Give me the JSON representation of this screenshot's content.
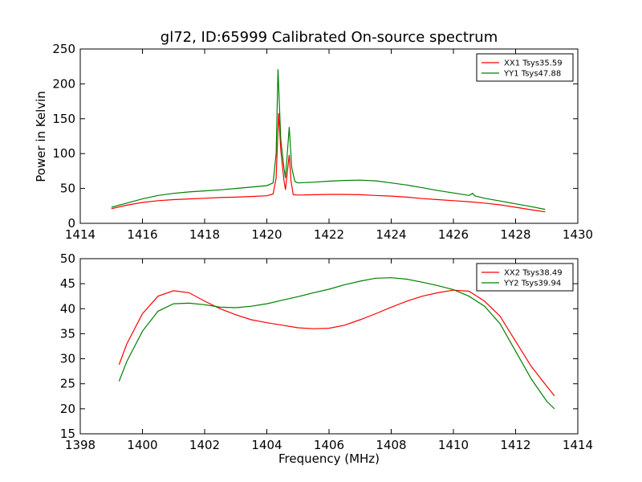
{
  "chart_data": [
    {
      "type": "line",
      "title": "gl72, ID:65999 Calibrated On-source spectrum",
      "ylabel": "Power in Kelvin",
      "xlabel": "",
      "xlim": [
        1414,
        1430
      ],
      "ylim": [
        0,
        250
      ],
      "xticks": [
        "1414",
        "1416",
        "1418",
        "1420",
        "1422",
        "1424",
        "1426",
        "1428",
        "1430"
      ],
      "yticks": [
        "0",
        "50",
        "100",
        "150",
        "200",
        "250"
      ],
      "legend_position": "top-right",
      "grid": false,
      "series": [
        {
          "name": "XX1 Tsys35.59",
          "color": "#ff0000",
          "x": [
            1415.0,
            1415.5,
            1416.0,
            1416.5,
            1417.0,
            1417.5,
            1418.0,
            1418.5,
            1419.0,
            1419.5,
            1420.0,
            1420.2,
            1420.3,
            1420.38,
            1420.45,
            1420.55,
            1420.6,
            1420.65,
            1420.72,
            1420.78,
            1420.85,
            1421.0,
            1421.5,
            1422.0,
            1422.5,
            1423.0,
            1423.5,
            1424.0,
            1424.5,
            1425.0,
            1425.5,
            1426.0,
            1426.5,
            1427.0,
            1427.5,
            1428.0,
            1428.5,
            1428.95
          ],
          "values": [
            21,
            26,
            30,
            32.5,
            34,
            35,
            36,
            37,
            37.5,
            38.5,
            39.5,
            42,
            65,
            158,
            105,
            62,
            48,
            70,
            98,
            60,
            41,
            40.5,
            41,
            41.5,
            41.5,
            41,
            40,
            39,
            37.5,
            35.5,
            34,
            32.5,
            31,
            29,
            26.5,
            23,
            19.5,
            16.5
          ]
        },
        {
          "name": "YY1 Tsys47.88",
          "color": "#008000",
          "x": [
            1415.0,
            1415.5,
            1416.0,
            1416.5,
            1417.0,
            1417.5,
            1418.0,
            1418.5,
            1419.0,
            1419.5,
            1420.0,
            1420.2,
            1420.3,
            1420.36,
            1420.45,
            1420.55,
            1420.6,
            1420.65,
            1420.72,
            1420.8,
            1420.9,
            1421.0,
            1421.5,
            1422.0,
            1422.5,
            1423.0,
            1423.5,
            1424.0,
            1424.5,
            1425.0,
            1425.5,
            1426.0,
            1426.5,
            1426.62,
            1426.68,
            1427.0,
            1427.5,
            1428.0,
            1428.5,
            1428.95
          ],
          "values": [
            23,
            29,
            35,
            40,
            43,
            45,
            46.5,
            48,
            50,
            52,
            54,
            58,
            100,
            221,
            120,
            80,
            65,
            95,
            138,
            80,
            60,
            58,
            59,
            60.5,
            61.5,
            62,
            61,
            58,
            55,
            51,
            47,
            43.5,
            40,
            43,
            39.5,
            36,
            32,
            28,
            24,
            20
          ]
        }
      ]
    },
    {
      "type": "line",
      "title": "",
      "xlabel": "Frequency (MHz)",
      "ylabel": "",
      "xlim": [
        1398,
        1414
      ],
      "ylim": [
        15,
        50
      ],
      "xticks": [
        "1398",
        "1400",
        "1402",
        "1404",
        "1406",
        "1408",
        "1410",
        "1412",
        "1414"
      ],
      "yticks": [
        "15",
        "20",
        "25",
        "30",
        "35",
        "40",
        "45",
        "50"
      ],
      "legend_position": "top-right",
      "grid": false,
      "series": [
        {
          "name": "XX2 Tsys38.49",
          "color": "#ff0000",
          "x": [
            1399.25,
            1399.5,
            1400.0,
            1400.5,
            1401.0,
            1401.5,
            1402.0,
            1402.5,
            1403.0,
            1403.5,
            1404.0,
            1404.5,
            1405.0,
            1405.5,
            1406.0,
            1406.5,
            1407.0,
            1407.5,
            1408.0,
            1408.5,
            1409.0,
            1409.5,
            1410.0,
            1410.5,
            1411.0,
            1411.5,
            1412.0,
            1412.5,
            1413.0,
            1413.25
          ],
          "values": [
            28.8,
            33,
            39,
            42.5,
            43.6,
            43.2,
            41.5,
            40,
            38.8,
            37.8,
            37.2,
            36.7,
            36.2,
            36.0,
            36.1,
            36.7,
            37.8,
            39,
            40.3,
            41.5,
            42.5,
            43.2,
            43.7,
            43.5,
            41.5,
            38.5,
            33.5,
            28.5,
            24.5,
            22.6
          ]
        },
        {
          "name": "YY2 Tsys39.94",
          "color": "#008000",
          "x": [
            1399.25,
            1399.5,
            1400.0,
            1400.5,
            1401.0,
            1401.5,
            1402.0,
            1402.5,
            1403.0,
            1403.5,
            1404.0,
            1404.5,
            1405.0,
            1405.5,
            1406.0,
            1406.5,
            1407.0,
            1407.5,
            1408.0,
            1408.5,
            1409.0,
            1409.5,
            1410.0,
            1410.5,
            1411.0,
            1411.5,
            1412.0,
            1412.5,
            1413.0,
            1413.25
          ],
          "values": [
            25.5,
            29.5,
            35.5,
            39.5,
            41,
            41.1,
            40.8,
            40.3,
            40.2,
            40.5,
            41,
            41.7,
            42.4,
            43.2,
            43.9,
            44.8,
            45.5,
            46.1,
            46.2,
            45.9,
            45.3,
            44.6,
            43.8,
            42.5,
            40.5,
            37,
            31.5,
            26,
            21.5,
            20
          ]
        }
      ]
    }
  ]
}
